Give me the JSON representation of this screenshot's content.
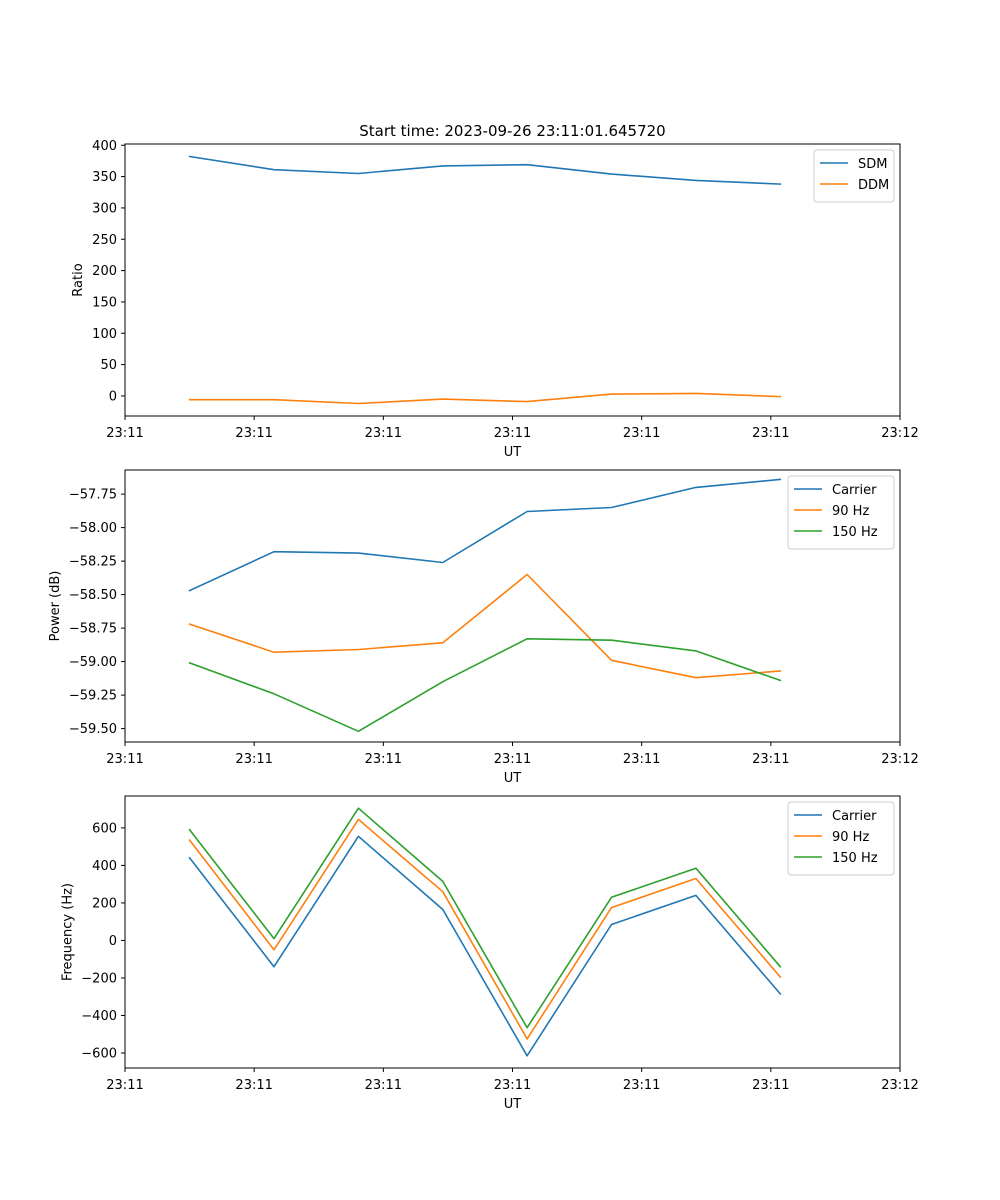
{
  "figure_title": "Start time: 2023-09-26 23:11:01.645720",
  "colors": {
    "blue": "#1f77b4",
    "orange": "#ff7f0e",
    "green": "#2ca02c"
  },
  "chart_data": [
    {
      "type": "line",
      "title": "Start time: 2023-09-26 23:11:01.645720",
      "xlabel": "UT",
      "ylabel": "Ratio",
      "xlim": [
        0,
        9
      ],
      "xticks": [
        0,
        1.5,
        3,
        4.5,
        6,
        7.5,
        9
      ],
      "xtick_labels": [
        "23:11",
        "23:11",
        "23:11",
        "23:11",
        "23:11",
        "23:11",
        "23:12"
      ],
      "ylim": [
        -32,
        402
      ],
      "yticks": [
        0,
        50,
        100,
        150,
        200,
        250,
        300,
        350,
        400
      ],
      "ytick_labels": [
        "0",
        "50",
        "100",
        "150",
        "200",
        "250",
        "300",
        "350",
        "400"
      ],
      "legend_position": "top-right",
      "x": [
        0.75,
        1.73,
        2.71,
        3.69,
        4.67,
        5.65,
        6.63,
        7.61
      ],
      "series": [
        {
          "name": "SDM",
          "color": "#1f77b4",
          "values": [
            382,
            361,
            355,
            367,
            369,
            354,
            344,
            338
          ]
        },
        {
          "name": "DDM",
          "color": "#ff7f0e",
          "values": [
            -6,
            -6,
            -12,
            -5,
            -9,
            3,
            4,
            -1
          ]
        }
      ]
    },
    {
      "type": "line",
      "title": "",
      "xlabel": "UT",
      "ylabel": "Power (dB)",
      "xlim": [
        0,
        9
      ],
      "xticks": [
        0,
        1.5,
        3,
        4.5,
        6,
        7.5,
        9
      ],
      "xtick_labels": [
        "23:11",
        "23:11",
        "23:11",
        "23:11",
        "23:11",
        "23:11",
        "23:12"
      ],
      "ylim": [
        -59.6,
        -57.57
      ],
      "yticks": [
        -59.5,
        -59.25,
        -59.0,
        -58.75,
        -58.5,
        -58.25,
        -58.0,
        -57.75
      ],
      "ytick_labels": [
        "−59.50",
        "−59.25",
        "−59.00",
        "−58.75",
        "−58.50",
        "−58.25",
        "−58.00",
        "−57.75"
      ],
      "legend_position": "top-right",
      "x": [
        0.75,
        1.73,
        2.71,
        3.69,
        4.67,
        5.65,
        6.63,
        7.61
      ],
      "series": [
        {
          "name": "Carrier",
          "color": "#1f77b4",
          "values": [
            -58.47,
            -58.18,
            -58.19,
            -58.26,
            -57.88,
            -57.85,
            -57.7,
            -57.64
          ]
        },
        {
          "name": "90 Hz",
          "color": "#ff7f0e",
          "values": [
            -58.72,
            -58.93,
            -58.91,
            -58.86,
            -58.35,
            -58.99,
            -59.12,
            -59.07
          ]
        },
        {
          "name": "150 Hz",
          "color": "#2ca02c",
          "values": [
            -59.01,
            -59.24,
            -59.52,
            -59.15,
            -58.83,
            -58.84,
            -58.92,
            -59.14
          ]
        }
      ]
    },
    {
      "type": "line",
      "title": "",
      "xlabel": "UT",
      "ylabel": "Frequency (Hz)",
      "xlim": [
        0,
        9
      ],
      "xticks": [
        0,
        1.5,
        3,
        4.5,
        6,
        7.5,
        9
      ],
      "xtick_labels": [
        "23:11",
        "23:11",
        "23:11",
        "23:11",
        "23:11",
        "23:11",
        "23:12"
      ],
      "ylim": [
        -680,
        770
      ],
      "yticks": [
        -600,
        -400,
        -200,
        0,
        200,
        400,
        600
      ],
      "ytick_labels": [
        "−600",
        "−400",
        "−200",
        "0",
        "200",
        "400",
        "600"
      ],
      "legend_position": "top-right",
      "x": [
        0.75,
        1.73,
        2.71,
        3.69,
        4.67,
        5.65,
        6.63,
        7.61
      ],
      "series": [
        {
          "name": "Carrier",
          "color": "#1f77b4",
          "values": [
            440,
            -140,
            555,
            165,
            -615,
            85,
            240,
            -285
          ]
        },
        {
          "name": "90 Hz",
          "color": "#ff7f0e",
          "values": [
            535,
            -50,
            645,
            260,
            -525,
            175,
            330,
            -195
          ]
        },
        {
          "name": "150 Hz",
          "color": "#2ca02c",
          "values": [
            590,
            10,
            705,
            315,
            -465,
            230,
            385,
            -140
          ]
        }
      ]
    }
  ]
}
